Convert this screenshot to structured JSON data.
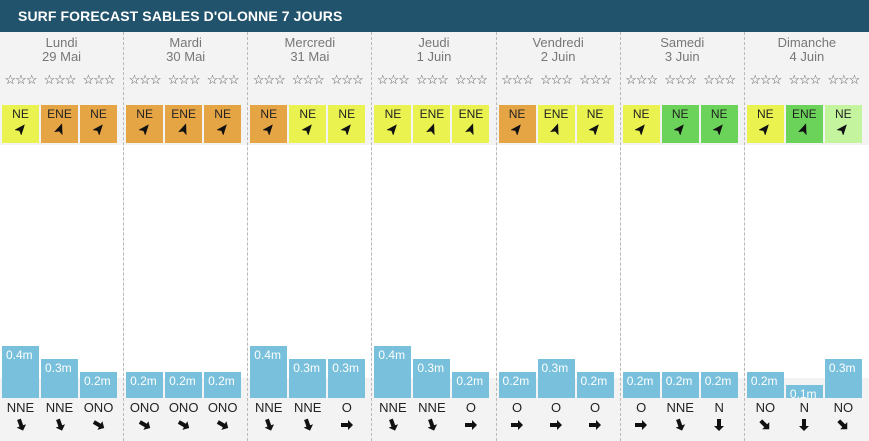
{
  "header": {
    "title": "SURF FORECAST SABLES D'OLONNE 7 JOURS"
  },
  "colors": {
    "header_bg": "#21536c",
    "yellow": "#eaf24f",
    "orange": "#e6a544",
    "green": "#6bd25a",
    "light_green": "#c4f59e",
    "wave": "#78c0db"
  },
  "rating_text": "☆☆☆",
  "days": [
    {
      "name": "Lundi",
      "date": "29 Mai",
      "slots": [
        {
          "wind": "NE",
          "wind_color": "orange_yellow",
          "wave": "0.4m",
          "wave_level": 0.4,
          "swell_dir": "NNE",
          "swell_angle": 160
        },
        {
          "wind": "ENE",
          "wind_color": "orange",
          "wave": "0.3m",
          "wave_level": 0.3,
          "swell_dir": "NNE",
          "swell_angle": 160
        },
        {
          "wind": "NE",
          "wind_color": "orange",
          "wave": "0.2m",
          "wave_level": 0.2,
          "swell_dir": "ONO",
          "swell_angle": 120
        }
      ]
    },
    {
      "name": "Mardi",
      "date": "30 Mai",
      "slots": [
        {
          "wind": "NE",
          "wind_color": "orange",
          "wave": "0.2m",
          "wave_level": 0.2,
          "swell_dir": "ONO",
          "swell_angle": 120
        },
        {
          "wind": "ENE",
          "wind_color": "orange",
          "wave": "0.2m",
          "wave_level": 0.2,
          "swell_dir": "ONO",
          "swell_angle": 120
        },
        {
          "wind": "NE",
          "wind_color": "orange",
          "wave": "0.2m",
          "wave_level": 0.2,
          "swell_dir": "ONO",
          "swell_angle": 120
        }
      ]
    },
    {
      "name": "Mercredi",
      "date": "31 Mai",
      "slots": [
        {
          "wind": "NE",
          "wind_color": "orange",
          "wave": "0.4m",
          "wave_level": 0.4,
          "swell_dir": "NNE",
          "swell_angle": 160
        },
        {
          "wind": "NE",
          "wind_color": "yellow",
          "wave": "0.3m",
          "wave_level": 0.3,
          "swell_dir": "NNE",
          "swell_angle": 160
        },
        {
          "wind": "NE",
          "wind_color": "yellow",
          "wave": "0.3m",
          "wave_level": 0.3,
          "swell_dir": "O",
          "swell_angle": 90
        }
      ]
    },
    {
      "name": "Jeudi",
      "date": "1 Juin",
      "slots": [
        {
          "wind": "NE",
          "wind_color": "yellow",
          "wave": "0.4m",
          "wave_level": 0.4,
          "swell_dir": "NNE",
          "swell_angle": 160
        },
        {
          "wind": "ENE",
          "wind_color": "yellow",
          "wave": "0.3m",
          "wave_level": 0.3,
          "swell_dir": "NNE",
          "swell_angle": 160
        },
        {
          "wind": "ENE",
          "wind_color": "yellow",
          "wave": "0.2m",
          "wave_level": 0.2,
          "swell_dir": "O",
          "swell_angle": 90
        }
      ]
    },
    {
      "name": "Vendredi",
      "date": "2 Juin",
      "slots": [
        {
          "wind": "NE",
          "wind_color": "orange",
          "wave": "0.2m",
          "wave_level": 0.2,
          "swell_dir": "O",
          "swell_angle": 90
        },
        {
          "wind": "ENE",
          "wind_color": "yellow",
          "wave": "0.3m",
          "wave_level": 0.3,
          "swell_dir": "O",
          "swell_angle": 90
        },
        {
          "wind": "NE",
          "wind_color": "yellow",
          "wave": "0.2m",
          "wave_level": 0.2,
          "swell_dir": "O",
          "swell_angle": 90
        }
      ]
    },
    {
      "name": "Samedi",
      "date": "3 Juin",
      "slots": [
        {
          "wind": "NE",
          "wind_color": "yellow",
          "wave": "0.2m",
          "wave_level": 0.2,
          "swell_dir": "O",
          "swell_angle": 90
        },
        {
          "wind": "NE",
          "wind_color": "green",
          "wave": "0.2m",
          "wave_level": 0.2,
          "swell_dir": "NNE",
          "swell_angle": 160
        },
        {
          "wind": "NE",
          "wind_color": "green",
          "wave": "0.2m",
          "wave_level": 0.2,
          "swell_dir": "N",
          "swell_angle": 180
        }
      ]
    },
    {
      "name": "Dimanche",
      "date": "4 Juin",
      "slots": [
        {
          "wind": "NE",
          "wind_color": "yellow",
          "wave": "0.2m",
          "wave_level": 0.2,
          "swell_dir": "NO",
          "swell_angle": 135
        },
        {
          "wind": "ENE",
          "wind_color": "green",
          "wave": "0.1m",
          "wave_level": 0.1,
          "swell_dir": "N",
          "swell_angle": 180
        },
        {
          "wind": "NE",
          "wind_color": "light_green",
          "wave": "0.3m",
          "wave_level": 0.3,
          "swell_dir": "NO",
          "swell_angle": 135
        }
      ]
    }
  ]
}
